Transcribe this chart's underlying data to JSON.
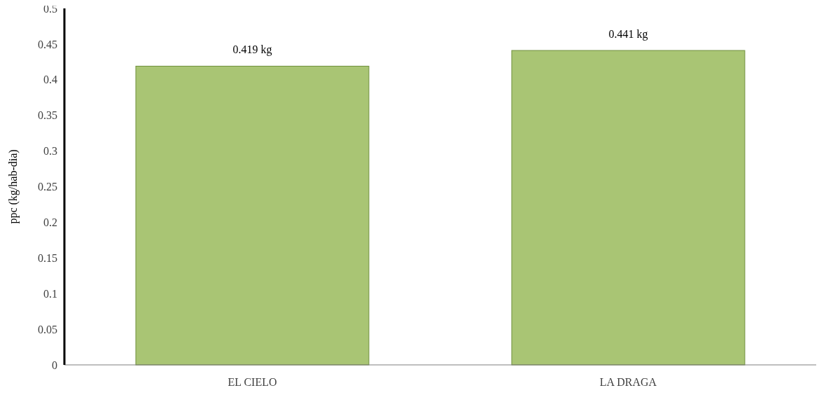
{
  "chart_data": {
    "type": "bar",
    "ylabel": "ppc (kg/hab-dia)",
    "categories": [
      "EL CIELO",
      "LA DRAGA"
    ],
    "values": [
      0.419,
      0.441
    ],
    "value_labels": [
      "0.419  kg",
      "0.441  kg"
    ],
    "color": "#a9c574",
    "ylim": [
      0,
      0.5
    ],
    "yticks": [
      0,
      0.05,
      0.1,
      0.15,
      0.2,
      0.25,
      0.3,
      0.35,
      0.4,
      0.45,
      0.5
    ],
    "grid": false
  }
}
